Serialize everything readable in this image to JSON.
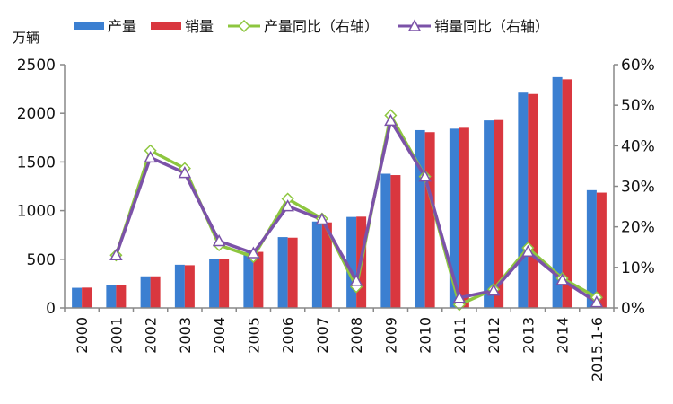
{
  "chart_data": {
    "type": "bar",
    "y_unit_label": "万辆",
    "categories": [
      "2000",
      "2001",
      "2002",
      "2003",
      "2004",
      "2005",
      "2006",
      "2007",
      "2008",
      "2009",
      "2010",
      "2011",
      "2012",
      "2013",
      "2014",
      "2015.1-6"
    ],
    "series": [
      {
        "name": "产量",
        "type": "bar",
        "axis": "left",
        "color": "#3b7fd1",
        "values": [
          207,
          233,
          325,
          444,
          507,
          571,
          728,
          888,
          935,
          1379,
          1827,
          1842,
          1927,
          2212,
          2372,
          1210
        ]
      },
      {
        "name": "销量",
        "type": "bar",
        "axis": "left",
        "color": "#d9373f",
        "values": [
          209,
          236,
          325,
          439,
          507,
          576,
          722,
          879,
          938,
          1365,
          1806,
          1851,
          1931,
          2198,
          2349,
          1185
        ]
      },
      {
        "name": "产量同比（右轴）",
        "type": "line",
        "axis": "right",
        "marker": "diamond",
        "color": "#8dc63f",
        "values": [
          null,
          13,
          38.8,
          34.4,
          15.5,
          12.6,
          26.9,
          22.0,
          5.2,
          47.5,
          32.4,
          0.8,
          4.6,
          14.8,
          7.3,
          2.6
        ]
      },
      {
        "name": "销量同比（右轴）",
        "type": "line",
        "axis": "right",
        "marker": "triangle",
        "color": "#7b52a8",
        "values": [
          null,
          13,
          37.1,
          33.3,
          16.5,
          13.5,
          25.1,
          21.8,
          6.7,
          46.2,
          32.4,
          2.5,
          4.3,
          13.9,
          6.9,
          1.4
        ]
      }
    ],
    "y_left": {
      "min": 0,
      "max": 2500,
      "ticks": [
        0,
        500,
        1000,
        1500,
        2000,
        2500
      ]
    },
    "y_right": {
      "min": 0,
      "max": 60,
      "ticks": [
        "0%",
        "10%",
        "20%",
        "30%",
        "40%",
        "50%",
        "60%"
      ]
    },
    "legend": "top",
    "grid": false
  }
}
